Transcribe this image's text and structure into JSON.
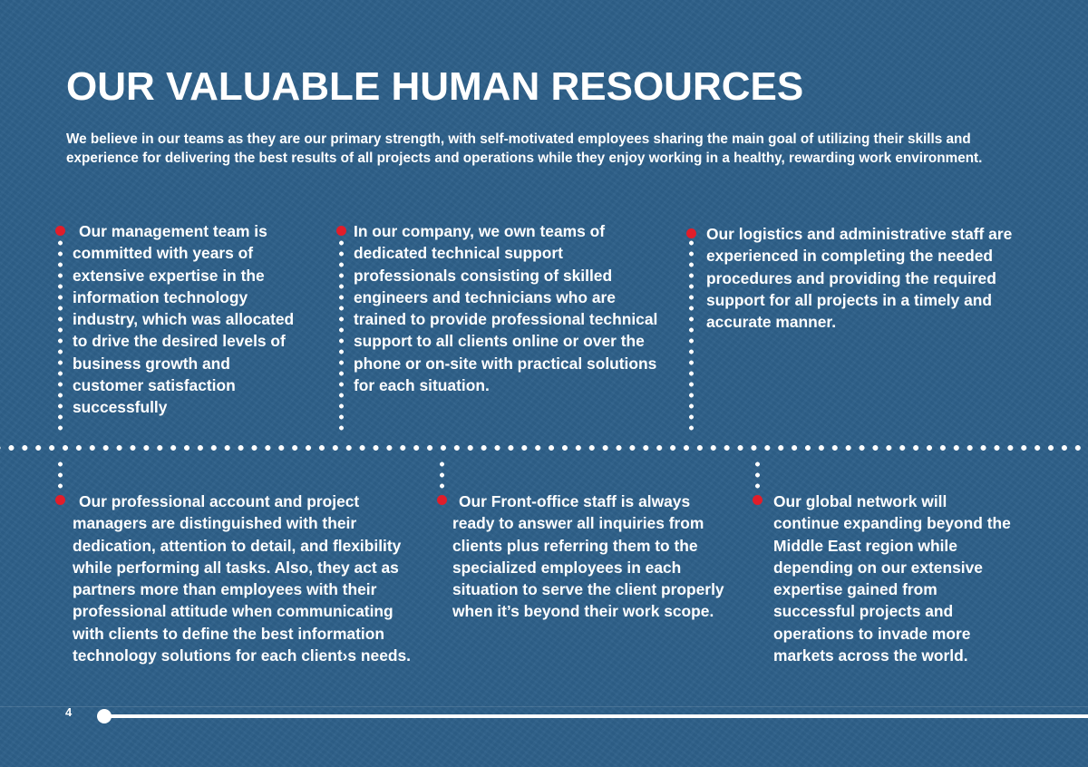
{
  "page": {
    "title": "OUR VALUABLE HUMAN RESOURCES",
    "intro": "We believe in our teams as they are our primary strength, with self-motivated employees sharing the main goal of utilizing their skills and experience for delivering the best results of all projects and operations while they enjoy working in a healthy, rewarding work environment.",
    "page_number": "4"
  },
  "colors": {
    "background": "#2e6089",
    "text": "#ffffff",
    "bullet_accent": "#e11d2a"
  },
  "top_blocks": [
    {
      "text": "Our management team is committed with years of extensive expertise in the information technology industry, which was allocated to drive the desired levels of business growth and customer satisfaction successfully"
    },
    {
      "text": "In our company, we own teams of dedicated technical support professionals consisting of skilled engineers and technicians who are trained to provide professional technical support to all clients online or over the phone or on-site with practical solutions for each situation."
    },
    {
      "text": "Our logistics and administrative staff are experienced in completing the needed procedures and providing the required support for all projects in a timely and accurate manner."
    }
  ],
  "bottom_blocks": [
    {
      "text": "Our professional account and project managers are distinguished with their dedication, attention to detail, and flexibility while performing all tasks. Also, they act as partners more than employees with their professional attitude when communicating with clients to define the best information technology solutions for each client›s needs."
    },
    {
      "text": "Our Front-office staff is always ready to answer all inquiries from clients plus referring them to the specialized employees in each situation to serve the client properly when it’s beyond their work scope."
    },
    {
      "text": "Our global network will continue expanding beyond the Middle East region while depending on our extensive expertise gained from successful projects and operations to invade more markets across the world."
    }
  ]
}
